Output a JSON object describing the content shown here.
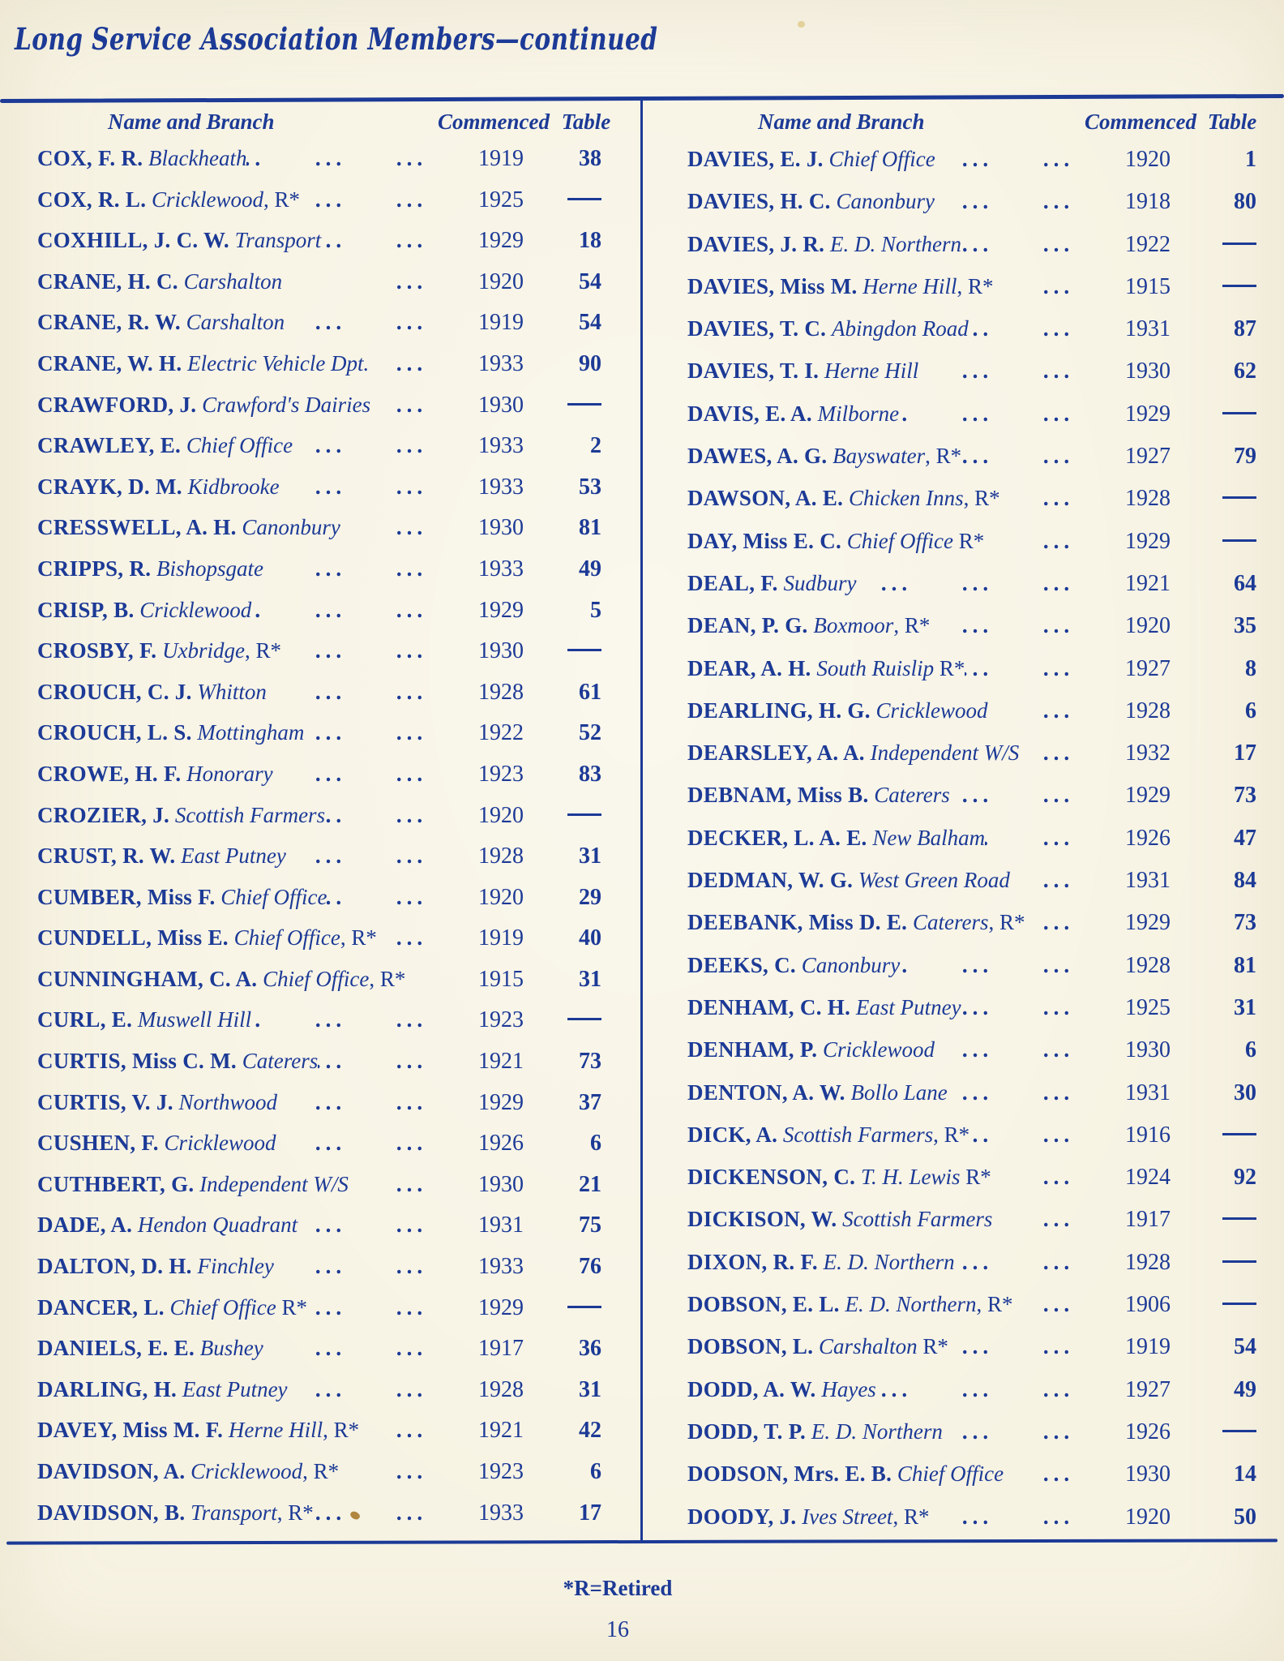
{
  "page": {
    "title": "Long Service Association Members—continued",
    "footnote": "*R=Retired",
    "page_number": "16",
    "ink_color": "#1c3a96",
    "paper_color": "#f7f3e3"
  },
  "table": {
    "headers": {
      "name_branch": "Name and Branch",
      "commenced": "Commenced",
      "table": "Table"
    },
    "dot_leader": "...",
    "no_table_symbol": "—",
    "left_column": [
      {
        "name": "COX, F. R.",
        "branch": "Blackheath",
        "suffix": "",
        "dots": 3,
        "commenced": "1919",
        "table": "38"
      },
      {
        "name": "COX, R. L.",
        "branch": "Cricklewood",
        "suffix": ", R*",
        "dots": 2,
        "commenced": "1925",
        "table": "—"
      },
      {
        "name": "COXHILL, J. C. W.",
        "branch": "Transport",
        "suffix": "",
        "dots": 2,
        "commenced": "1929",
        "table": "18"
      },
      {
        "name": "CRANE, H. C.",
        "branch": "Carshalton",
        "suffix": "",
        "dots": 1,
        "commenced": "1920",
        "table": "54"
      },
      {
        "name": "CRANE, R. W.",
        "branch": "Carshalton",
        "suffix": "",
        "dots": 2,
        "commenced": "1919",
        "table": "54"
      },
      {
        "name": "CRANE, W. H.",
        "branch": "Electric Vehicle Dpt.",
        "suffix": "",
        "dots": 1,
        "commenced": "1933",
        "table": "90"
      },
      {
        "name": "CRAWFORD, J.",
        "branch": "Crawford's Dairies",
        "suffix": "",
        "dots": 1,
        "commenced": "1930",
        "table": "—"
      },
      {
        "name": "CRAWLEY, E.",
        "branch": "Chief Office",
        "suffix": "",
        "dots": 2,
        "commenced": "1933",
        "table": "2"
      },
      {
        "name": "CRAYK, D. M.",
        "branch": "Kidbrooke",
        "suffix": "",
        "dots": 3,
        "commenced": "1933",
        "table": "53"
      },
      {
        "name": "CRESSWELL, A. H.",
        "branch": "Canonbury",
        "suffix": "",
        "dots": 2,
        "commenced": "1930",
        "table": "81"
      },
      {
        "name": "CRIPPS, R.",
        "branch": "Bishopsgate",
        "suffix": "",
        "dots": 3,
        "commenced": "1933",
        "table": "49"
      },
      {
        "name": "CRISP, B.",
        "branch": "Cricklewood",
        "suffix": "",
        "dots": 3,
        "commenced": "1929",
        "table": "5"
      },
      {
        "name": "CROSBY, F.",
        "branch": "Uxbridge",
        "suffix": ", R*",
        "dots": 2,
        "commenced": "1930",
        "table": "—"
      },
      {
        "name": "CROUCH, C. J.",
        "branch": "Whitton",
        "suffix": "",
        "dots": 3,
        "commenced": "1928",
        "table": "61"
      },
      {
        "name": "CROUCH, L. S.",
        "branch": "Mottingham",
        "suffix": "",
        "dots": 2,
        "commenced": "1922",
        "table": "52"
      },
      {
        "name": "CROWE, H. F.",
        "branch": "Honorary",
        "suffix": "",
        "dots": 3,
        "commenced": "1923",
        "table": "83"
      },
      {
        "name": "CROZIER, J.",
        "branch": "Scottish Farmers",
        "suffix": "",
        "dots": 2,
        "commenced": "1920",
        "table": "—"
      },
      {
        "name": "CRUST, R. W.",
        "branch": "East Putney",
        "suffix": "",
        "dots": 2,
        "commenced": "1928",
        "table": "31"
      },
      {
        "name": "CUMBER, Miss F.",
        "branch": "Chief Office",
        "suffix": "",
        "dots": 2,
        "commenced": "1920",
        "table": "29"
      },
      {
        "name": "CUNDELL, Miss E.",
        "branch": "Chief Office",
        "suffix": ", R*",
        "dots": 1,
        "commenced": "1919",
        "table": "40"
      },
      {
        "name": "CUNNINGHAM, C. A.",
        "branch": "Chief Office",
        "suffix": ", R*",
        "dots": 0,
        "commenced": "1915",
        "table": "31"
      },
      {
        "name": "CURL, E.",
        "branch": "Muswell Hill",
        "suffix": "",
        "dots": 3,
        "commenced": "1923",
        "table": "—"
      },
      {
        "name": "CURTIS, Miss C. M.",
        "branch": "Caterers",
        "suffix": "",
        "dots": 2,
        "commenced": "1921",
        "table": "73"
      },
      {
        "name": "CURTIS, V. J.",
        "branch": "Northwood",
        "suffix": "",
        "dots": 2,
        "commenced": "1929",
        "table": "37"
      },
      {
        "name": "CUSHEN, F.",
        "branch": "Cricklewood",
        "suffix": "",
        "dots": 2,
        "commenced": "1926",
        "table": "6"
      },
      {
        "name": "CUTHBERT, G.",
        "branch": "Independent W/S",
        "suffix": "",
        "dots": 1,
        "commenced": "1930",
        "table": "21"
      },
      {
        "name": "DADE, A.",
        "branch": "Hendon Quadrant",
        "suffix": "",
        "dots": 2,
        "commenced": "1931",
        "table": "75"
      },
      {
        "name": "DALTON, D. H.",
        "branch": "Finchley",
        "suffix": "",
        "dots": 3,
        "commenced": "1933",
        "table": "76"
      },
      {
        "name": "DANCER, L.",
        "branch": "Chief Office",
        "suffix": " R*",
        "dots": 2,
        "commenced": "1929",
        "table": "—"
      },
      {
        "name": "DANIELS, E. E.",
        "branch": "Bushey",
        "suffix": "",
        "dots": 3,
        "commenced": "1917",
        "table": "36"
      },
      {
        "name": "DARLING, H.",
        "branch": "East Putney",
        "suffix": "",
        "dots": 2,
        "commenced": "1928",
        "table": "31"
      },
      {
        "name": "DAVEY, Miss M. F.",
        "branch": "Herne Hill",
        "suffix": ", R*",
        "dots": 1,
        "commenced": "1921",
        "table": "42"
      },
      {
        "name": "DAVIDSON, A.",
        "branch": "Cricklewood",
        "suffix": ", R*",
        "dots": 1,
        "commenced": "1923",
        "table": "6"
      },
      {
        "name": "DAVIDSON, B.",
        "branch": "Transport",
        "suffix": ", R*",
        "dots": 2,
        "commenced": "1933",
        "table": "17"
      }
    ],
    "right_column": [
      {
        "name": "DAVIES, E. J.",
        "branch": "Chief Office",
        "suffix": "",
        "dots": 2,
        "commenced": "1920",
        "table": "1"
      },
      {
        "name": "DAVIES, H. C.",
        "branch": "Canonbury",
        "suffix": "",
        "dots": 2,
        "commenced": "1918",
        "table": "80"
      },
      {
        "name": "DAVIES, J. R.",
        "branch": "E. D. Northern",
        "suffix": "",
        "dots": 2,
        "commenced": "1922",
        "table": "—"
      },
      {
        "name": "DAVIES, Miss M.",
        "branch": "Herne Hill",
        "suffix": ", R*",
        "dots": 1,
        "commenced": "1915",
        "table": "—"
      },
      {
        "name": "DAVIES, T. C.",
        "branch": "Abingdon Road",
        "suffix": "",
        "dots": 2,
        "commenced": "1931",
        "table": "87"
      },
      {
        "name": "DAVIES, T. I.",
        "branch": "Herne Hill",
        "suffix": "",
        "dots": 2,
        "commenced": "1930",
        "table": "62"
      },
      {
        "name": "DAVIS, E. A.",
        "branch": "Milborne",
        "suffix": "",
        "dots": 3,
        "commenced": "1929",
        "table": "—"
      },
      {
        "name": "DAWES, A. G.",
        "branch": "Bayswater",
        "suffix": ", R*",
        "dots": 2,
        "commenced": "1927",
        "table": "79"
      },
      {
        "name": "DAWSON, A. E.",
        "branch": "Chicken Inns",
        "suffix": ", R*",
        "dots": 1,
        "commenced": "1928",
        "table": "—"
      },
      {
        "name": "DAY, Miss E. C.",
        "branch": "Chief Office",
        "suffix": " R*",
        "dots": 1,
        "commenced": "1929",
        "table": "—"
      },
      {
        "name": "DEAL, F.",
        "branch": "Sudbury",
        "suffix": "",
        "dots": 3,
        "commenced": "1921",
        "table": "64"
      },
      {
        "name": "DEAN, P. G.",
        "branch": "Boxmoor",
        "suffix": ", R*",
        "dots": 2,
        "commenced": "1920",
        "table": "35"
      },
      {
        "name": "DEAR, A. H.",
        "branch": "South Ruislip",
        "suffix": " R*",
        "dots": 2,
        "commenced": "1927",
        "table": "8"
      },
      {
        "name": "DEARLING, H. G.",
        "branch": "Cricklewood",
        "suffix": "",
        "dots": 2,
        "commenced": "1928",
        "table": "6"
      },
      {
        "name": "DEARSLEY, A. A.",
        "branch": "Independent W/S",
        "suffix": "",
        "dots": 1,
        "commenced": "1932",
        "table": "17"
      },
      {
        "name": "DEBNAM, Miss B.",
        "branch": "Caterers",
        "suffix": "",
        "dots": 2,
        "commenced": "1929",
        "table": "73"
      },
      {
        "name": "DECKER, L. A. E.",
        "branch": "New Balham",
        "suffix": "",
        "dots": 2,
        "commenced": "1926",
        "table": "47"
      },
      {
        "name": "DEDMAN, W. G.",
        "branch": "West Green Road",
        "suffix": "",
        "dots": 1,
        "commenced": "1931",
        "table": "84"
      },
      {
        "name": "DEEBANK, Miss D. E.",
        "branch": "Caterers",
        "suffix": ", R*",
        "dots": 1,
        "commenced": "1929",
        "table": "73"
      },
      {
        "name": "DEEKS, C.",
        "branch": "Canonbury",
        "suffix": "",
        "dots": 3,
        "commenced": "1928",
        "table": "81"
      },
      {
        "name": "DENHAM, C. H.",
        "branch": "East Putney",
        "suffix": "",
        "dots": 2,
        "commenced": "1925",
        "table": "31"
      },
      {
        "name": "DENHAM, P.",
        "branch": "Cricklewood",
        "suffix": "",
        "dots": 2,
        "commenced": "1930",
        "table": "6"
      },
      {
        "name": "DENTON, A. W.",
        "branch": "Bollo Lane",
        "suffix": "",
        "dots": 2,
        "commenced": "1931",
        "table": "30"
      },
      {
        "name": "DICK, A.",
        "branch": "Scottish Farmers",
        "suffix": ", R*",
        "dots": 2,
        "commenced": "1916",
        "table": "—"
      },
      {
        "name": "DICKENSON, C.",
        "branch": "T. H. Lewis",
        "suffix": " R*",
        "dots": 1,
        "commenced": "1924",
        "table": "92"
      },
      {
        "name": "DICKISON, W.",
        "branch": "Scottish Farmers",
        "suffix": "",
        "dots": 1,
        "commenced": "1917",
        "table": "—"
      },
      {
        "name": "DIXON, R. F.",
        "branch": "E. D. Northern",
        "suffix": "",
        "dots": 2,
        "commenced": "1928",
        "table": "—"
      },
      {
        "name": "DOBSON, E. L.",
        "branch": "E. D. Northern",
        "suffix": ", R*",
        "dots": 1,
        "commenced": "1906",
        "table": "—"
      },
      {
        "name": "DOBSON, L.",
        "branch": "Carshalton",
        "suffix": " R*",
        "dots": 2,
        "commenced": "1919",
        "table": "54"
      },
      {
        "name": "DODD, A. W.",
        "branch": "Hayes",
        "suffix": "",
        "dots": 3,
        "commenced": "1927",
        "table": "49"
      },
      {
        "name": "DODD, T. P.",
        "branch": "E. D. Northern",
        "suffix": "",
        "dots": 2,
        "commenced": "1926",
        "table": "—"
      },
      {
        "name": "DODSON, Mrs. E. B.",
        "branch": "Chief Office",
        "suffix": "",
        "dots": 1,
        "commenced": "1930",
        "table": "14"
      },
      {
        "name": "DOODY, J.",
        "branch": "Ives Street",
        "suffix": ", R*",
        "dots": 2,
        "commenced": "1920",
        "table": "50"
      }
    ]
  }
}
